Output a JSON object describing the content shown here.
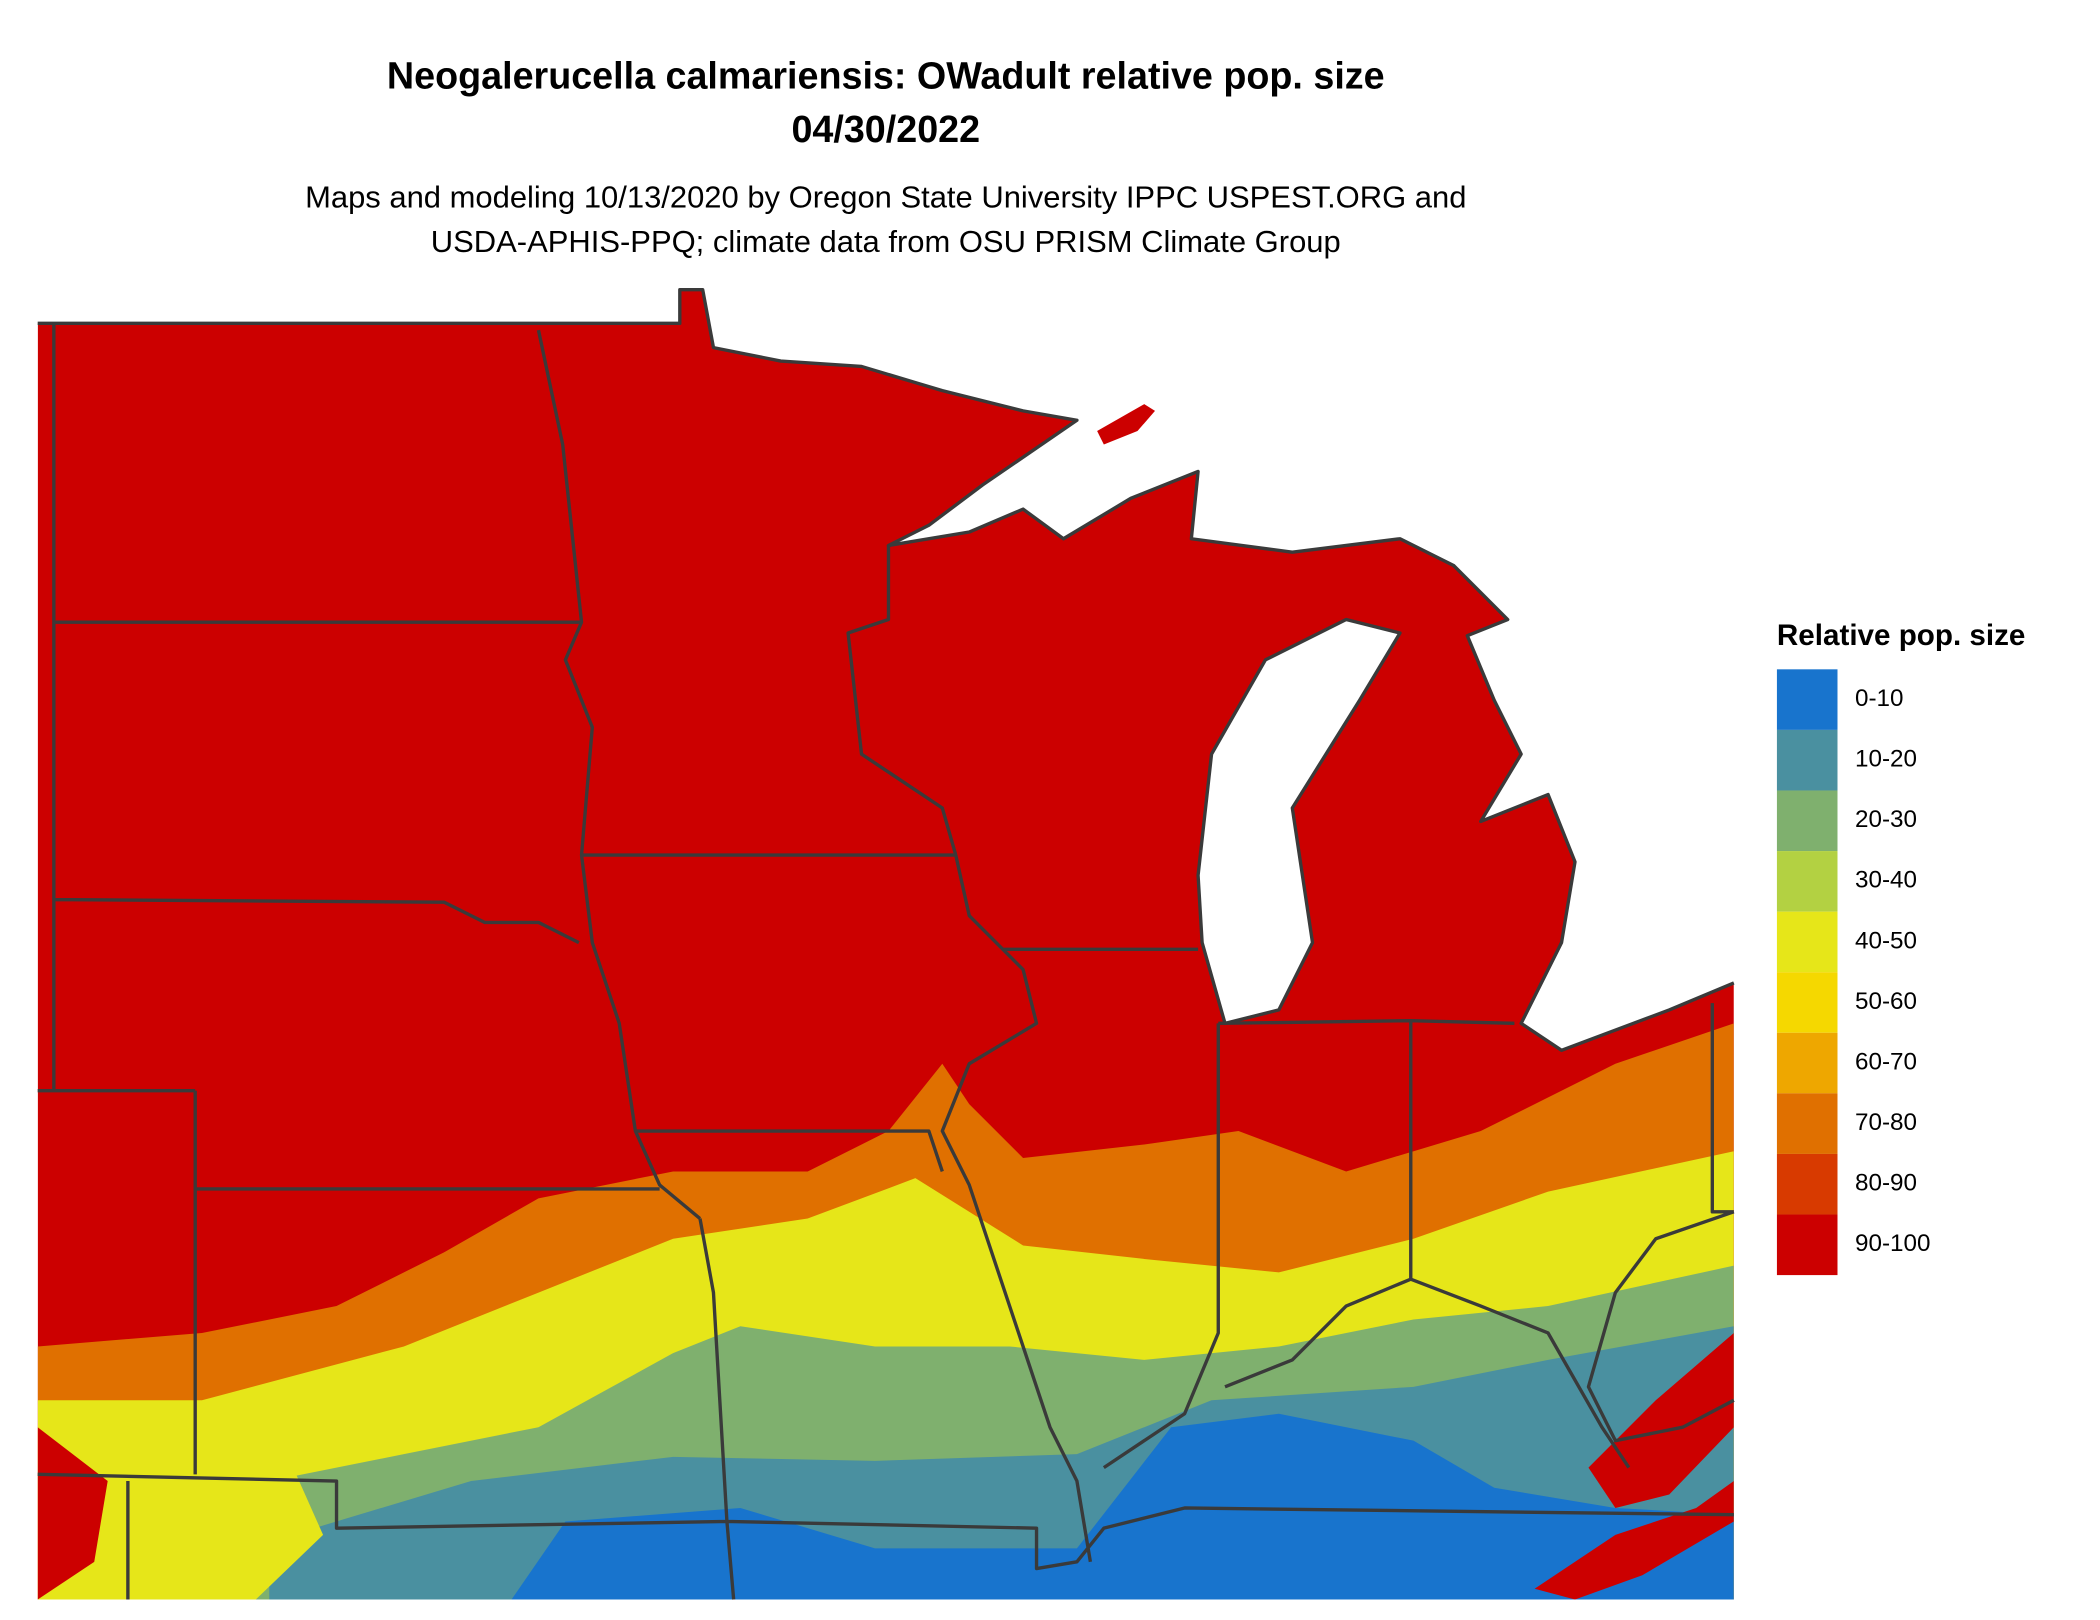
{
  "title": "Neogalerucella calmariensis: OWadult relative pop. size",
  "date": "04/30/2022",
  "subtitle": [
    "Maps and modeling 10/13/2020 by Oregon State University IPPC USPEST.ORG and",
    "USDA-APHIS-PPQ; climate data from OSU PRISM Climate Group"
  ],
  "legend": {
    "title": "Relative pop. size",
    "items": [
      {
        "label": "0-10",
        "color": "#1874cd"
      },
      {
        "label": "10-20",
        "color": "#4a90a0"
      },
      {
        "label": "20-30",
        "color": "#7fb06e"
      },
      {
        "label": "30-40",
        "color": "#b3d142"
      },
      {
        "label": "40-50",
        "color": "#e6e619"
      },
      {
        "label": "50-60",
        "color": "#f5d800"
      },
      {
        "label": "60-70",
        "color": "#eea700"
      },
      {
        "label": "70-80",
        "color": "#e07000"
      },
      {
        "label": "80-90",
        "color": "#d83a00"
      },
      {
        "label": "90-100",
        "color": "#cc0000"
      }
    ]
  }
}
